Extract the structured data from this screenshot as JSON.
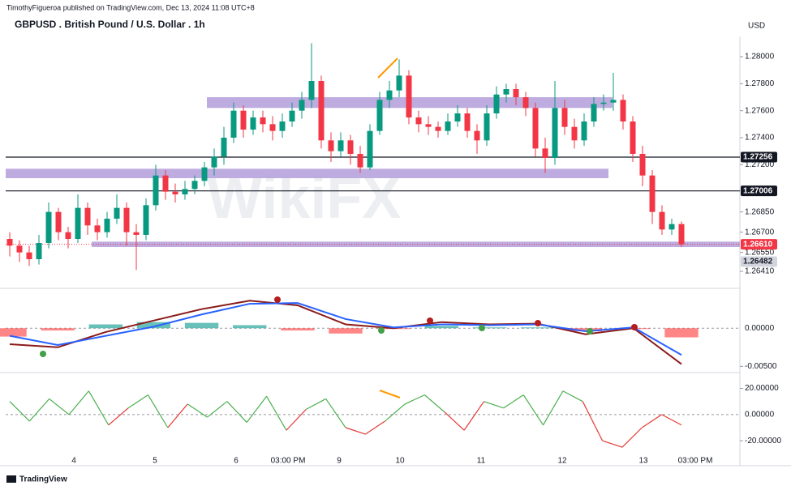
{
  "header": {
    "byline": "TimothyFigueroa published on TradingView.com, Dec 13, 2024 11:08 UTC+8",
    "title": "GBPUSD . British Pound / U.S. Dollar . 1h",
    "currency": "USD",
    "watermark": "WikiFX",
    "footer": "TradingView"
  },
  "x_axis_labels": [
    "4",
    "5",
    "6",
    "03:00 PM",
    "9",
    "10",
    "11",
    "12",
    "13",
    "03:00 PM"
  ],
  "chart_data": [
    {
      "type": "candlestick",
      "ylim": [
        1.2629,
        1.2815
      ],
      "yticks": [
        {
          "value": 1.28,
          "label": "1.28000"
        },
        {
          "value": 1.278,
          "label": "1.27800"
        },
        {
          "value": 1.276,
          "label": "1.27600"
        },
        {
          "value": 1.274,
          "label": "1.27400"
        },
        {
          "value": 1.272,
          "label": "1.27200"
        },
        {
          "value": 1.2685,
          "label": "1.26850"
        },
        {
          "value": 1.267,
          "label": "1.26700"
        },
        {
          "value": 1.2655,
          "label": "1.26550"
        },
        {
          "value": 1.2641,
          "label": "1.26410"
        }
      ],
      "up_color": "#089981",
      "down_color": "#f23645",
      "candles": [
        [
          1.2665,
          1.267,
          1.2652,
          1.266
        ],
        [
          1.266,
          1.2664,
          1.2648,
          1.2655
        ],
        [
          1.2655,
          1.266,
          1.2645,
          1.265
        ],
        [
          1.265,
          1.2668,
          1.2646,
          1.2662
        ],
        [
          1.2662,
          1.2692,
          1.2658,
          1.2685
        ],
        [
          1.2685,
          1.2688,
          1.2664,
          1.267
        ],
        [
          1.267,
          1.2674,
          1.2658,
          1.2665
        ],
        [
          1.2665,
          1.2698,
          1.2662,
          1.2688
        ],
        [
          1.2688,
          1.2692,
          1.2668,
          1.2675
        ],
        [
          1.2675,
          1.268,
          1.2664,
          1.267
        ],
        [
          1.267,
          1.2685,
          1.2666,
          1.268
        ],
        [
          1.268,
          1.2698,
          1.2676,
          1.2688
        ],
        [
          1.2688,
          1.2692,
          1.266,
          1.267
        ],
        [
          1.267,
          1.2676,
          1.2642,
          1.2668
        ],
        [
          1.2668,
          1.2695,
          1.2664,
          1.269
        ],
        [
          1.269,
          1.272,
          1.2686,
          1.2712
        ],
        [
          1.2712,
          1.2716,
          1.2694,
          1.27
        ],
        [
          1.27,
          1.2706,
          1.2692,
          1.2698
        ],
        [
          1.2698,
          1.2708,
          1.2694,
          1.2702
        ],
        [
          1.2702,
          1.2712,
          1.2698,
          1.2708
        ],
        [
          1.2708,
          1.2722,
          1.2704,
          1.2718
        ],
        [
          1.2718,
          1.2732,
          1.2712,
          1.2726
        ],
        [
          1.2726,
          1.2748,
          1.272,
          1.274
        ],
        [
          1.274,
          1.2766,
          1.2736,
          1.276
        ],
        [
          1.276,
          1.2764,
          1.274,
          1.2746
        ],
        [
          1.2746,
          1.276,
          1.2742,
          1.2755
        ],
        [
          1.2755,
          1.276,
          1.2744,
          1.275
        ],
        [
          1.275,
          1.2756,
          1.2738,
          1.2745
        ],
        [
          1.2745,
          1.2758,
          1.274,
          1.2752
        ],
        [
          1.2752,
          1.2766,
          1.2748,
          1.276
        ],
        [
          1.276,
          1.2774,
          1.2754,
          1.2768
        ],
        [
          1.2768,
          1.281,
          1.2762,
          1.2782
        ],
        [
          1.2782,
          1.2786,
          1.2732,
          1.2738
        ],
        [
          1.2738,
          1.2744,
          1.2722,
          1.273
        ],
        [
          1.273,
          1.2744,
          1.2726,
          1.2738
        ],
        [
          1.2738,
          1.2742,
          1.272,
          1.2728
        ],
        [
          1.2728,
          1.2734,
          1.2714,
          1.2718
        ],
        [
          1.2718,
          1.275,
          1.2716,
          1.2745
        ],
        [
          1.2745,
          1.2774,
          1.2742,
          1.2768
        ],
        [
          1.2768,
          1.2782,
          1.2762,
          1.2775
        ],
        [
          1.2775,
          1.2798,
          1.277,
          1.2786
        ],
        [
          1.2786,
          1.279,
          1.275,
          1.2755
        ],
        [
          1.2755,
          1.276,
          1.2744,
          1.275
        ],
        [
          1.275,
          1.2756,
          1.2742,
          1.2748
        ],
        [
          1.2748,
          1.2752,
          1.274,
          1.2745
        ],
        [
          1.2745,
          1.2758,
          1.2742,
          1.2752
        ],
        [
          1.2752,
          1.2764,
          1.2748,
          1.2758
        ],
        [
          1.2758,
          1.2762,
          1.274,
          1.2745
        ],
        [
          1.2745,
          1.275,
          1.2728,
          1.2738
        ],
        [
          1.2738,
          1.2764,
          1.2734,
          1.2758
        ],
        [
          1.2758,
          1.2778,
          1.2754,
          1.2772
        ],
        [
          1.2772,
          1.278,
          1.2766,
          1.2776
        ],
        [
          1.2776,
          1.278,
          1.2764,
          1.277
        ],
        [
          1.277,
          1.2774,
          1.2756,
          1.2762
        ],
        [
          1.2762,
          1.2766,
          1.2726,
          1.2732
        ],
        [
          1.2732,
          1.274,
          1.2714,
          1.2725
        ],
        [
          1.2725,
          1.2782,
          1.272,
          1.2762
        ],
        [
          1.2762,
          1.2768,
          1.2742,
          1.2748
        ],
        [
          1.2748,
          1.2754,
          1.2732,
          1.2738
        ],
        [
          1.2738,
          1.2758,
          1.2734,
          1.2752
        ],
        [
          1.2752,
          1.277,
          1.2748,
          1.2765
        ],
        [
          1.2765,
          1.2772,
          1.276,
          1.2766
        ],
        [
          1.2766,
          1.2788,
          1.276,
          1.2768
        ],
        [
          1.2768,
          1.2772,
          1.2746,
          1.2752
        ],
        [
          1.2752,
          1.2756,
          1.2722,
          1.2728
        ],
        [
          1.2728,
          1.2734,
          1.2704,
          1.2712
        ],
        [
          1.2712,
          1.2716,
          1.2676,
          1.2685
        ],
        [
          1.2685,
          1.269,
          1.2668,
          1.2672
        ],
        [
          1.2672,
          1.268,
          1.2668,
          1.2676
        ],
        [
          1.2676,
          1.2678,
          1.2659,
          1.2661
        ]
      ],
      "zones": [
        [
          1.2762,
          1.277
        ],
        [
          1.271,
          1.2717
        ],
        [
          1.2659,
          1.2663
        ]
      ],
      "zone_color": "#b39ddb",
      "levels": [
        1.27256,
        1.27006,
        {
          "value": 1.2661,
          "label": "1.26610"
        },
        1.26482
      ],
      "level_colors": [
        "#131722",
        "#131722",
        "#f23645",
        "#d1d4dc"
      ],
      "level_styles": [
        "solid",
        "solid",
        "dotted",
        "none"
      ]
    },
    {
      "type": "line",
      "ylim": [
        -0.0056,
        0.0048
      ],
      "yticks": [
        {
          "value": 0,
          "label": "0.00000"
        },
        {
          "value": -0.005,
          "label": "-0.00500"
        }
      ],
      "histogram": [
        -0.0011,
        -0.0003,
        0.0005,
        0.0008,
        0.0007,
        0.0004,
        -0.0003,
        -0.0007,
        -0.0001,
        0.0003,
        0.0001,
        0.0001,
        -0.0004,
        -0.0001,
        -0.0012
      ],
      "hist_colors": [
        "#26a69a",
        "#ff5252"
      ],
      "series": [
        {
          "color": "#8b1a1a",
          "values": [
            -0.0021,
            -0.0025,
            -0.0005,
            0.001,
            0.0025,
            0.0036,
            0.003,
            0.0005,
            0,
            0.0008,
            0.0005,
            0.0006,
            -0.0008,
            0,
            -0.0047
          ]
        },
        {
          "color": "#2962ff",
          "values": [
            -0.001,
            -0.0022,
            -0.001,
            0.0002,
            0.0018,
            0.0032,
            0.0033,
            0.0012,
            0.0001,
            0.0005,
            0.0004,
            0.0005,
            -0.0004,
            0.0001,
            -0.0035
          ]
        }
      ]
    },
    {
      "type": "line",
      "ylim": [
        -36,
        29
      ],
      "yticks": [
        {
          "value": 20,
          "label": "20.00000"
        },
        {
          "value": 0,
          "label": "0.00000"
        },
        {
          "value": -20,
          "label": "-20.00000"
        }
      ],
      "pos_color": "#4caf50",
      "neg_color": "#e53935",
      "series": [
        {
          "values": [
            10,
            -5,
            12,
            0,
            18,
            -8,
            5,
            15,
            -10,
            8,
            -2,
            10,
            -6,
            14,
            -12,
            4,
            12,
            -10,
            -15,
            -5,
            8,
            15,
            2,
            -12,
            10,
            5,
            15,
            -8,
            18,
            10,
            -20,
            -25,
            -10,
            0,
            -8
          ]
        }
      ]
    }
  ]
}
